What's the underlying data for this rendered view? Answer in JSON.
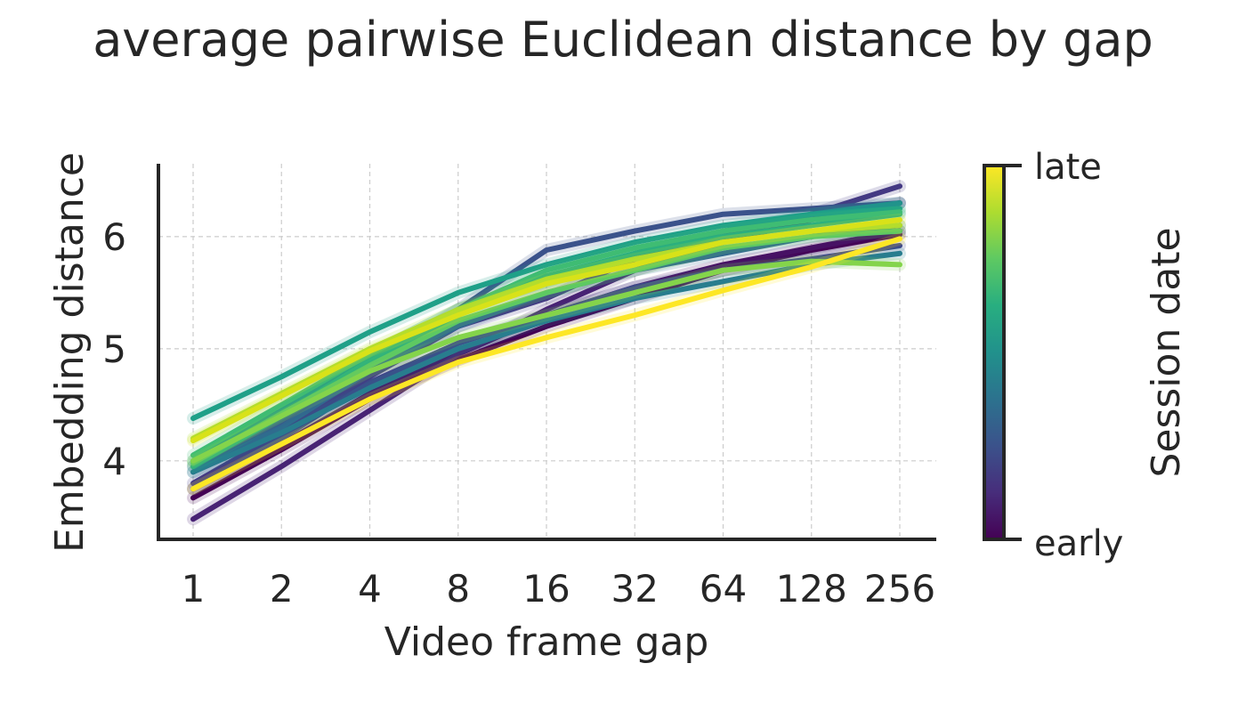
{
  "chart_data": {
    "type": "line",
    "title": "average pairwise Euclidean distance by gap",
    "xlabel": "Video frame gap",
    "ylabel": "Embedding distance",
    "x": [
      1,
      2,
      4,
      8,
      16,
      32,
      64,
      128,
      256
    ],
    "x_scale": "log2",
    "xticks": [
      "1",
      "2",
      "4",
      "8",
      "16",
      "32",
      "64",
      "128",
      "256"
    ],
    "yticks": [
      4,
      5,
      6
    ],
    "ylim": [
      3.3,
      6.65
    ],
    "grid": true,
    "colorbar": {
      "label": "Session date",
      "tick_top": "late",
      "tick_bottom": "early",
      "colormap": "viridis"
    },
    "series": [
      {
        "color": "#440154",
        "values": [
          3.67,
          4.1,
          4.55,
          4.9,
          5.2,
          5.45,
          5.7,
          5.88,
          6.02
        ]
      },
      {
        "color": "#471164",
        "values": [
          3.75,
          4.15,
          4.6,
          4.95,
          5.3,
          5.55,
          5.75,
          5.9,
          6.05
        ]
      },
      {
        "color": "#482374",
        "values": [
          3.48,
          3.95,
          4.45,
          4.95,
          5.35,
          5.7,
          5.95,
          6.15,
          6.3
        ]
      },
      {
        "color": "#443983",
        "values": [
          3.8,
          4.25,
          4.75,
          5.2,
          5.45,
          5.8,
          6.0,
          6.2,
          6.45
        ]
      },
      {
        "color": "#3e4989",
        "values": [
          3.75,
          4.2,
          4.7,
          5.05,
          5.3,
          5.55,
          5.7,
          5.8,
          5.92
        ]
      },
      {
        "color": "#3b528b",
        "values": [
          3.95,
          4.35,
          4.85,
          5.35,
          5.88,
          6.05,
          6.2,
          6.25,
          6.3
        ]
      },
      {
        "color": "#31688e",
        "values": [
          3.9,
          4.3,
          4.8,
          5.2,
          5.5,
          5.7,
          5.85,
          6.0,
          6.1
        ]
      },
      {
        "color": "#287d8e",
        "values": [
          3.9,
          4.25,
          4.65,
          5.0,
          5.25,
          5.45,
          5.6,
          5.75,
          5.85
        ]
      },
      {
        "color": "#21918c",
        "values": [
          4.0,
          4.45,
          4.95,
          5.35,
          5.6,
          5.85,
          6.05,
          6.2,
          6.3
        ]
      },
      {
        "color": "#1fa088",
        "values": [
          4.38,
          4.75,
          5.15,
          5.5,
          5.75,
          5.95,
          6.1,
          6.2,
          6.25
        ]
      },
      {
        "color": "#28ae80",
        "values": [
          3.95,
          4.4,
          4.9,
          5.3,
          5.65,
          5.85,
          6.0,
          6.1,
          6.2
        ]
      },
      {
        "color": "#3fbc73",
        "values": [
          4.05,
          4.5,
          4.95,
          5.35,
          5.7,
          5.9,
          6.05,
          6.15,
          6.22
        ]
      },
      {
        "color": "#5ec962",
        "values": [
          3.98,
          4.42,
          4.85,
          5.25,
          5.5,
          5.7,
          5.9,
          6.0,
          6.05
        ]
      },
      {
        "color": "#84d44b",
        "values": [
          4.0,
          4.4,
          4.8,
          5.1,
          5.3,
          5.5,
          5.7,
          5.78,
          5.75
        ]
      },
      {
        "color": "#addc30",
        "values": [
          4.2,
          4.6,
          5.0,
          5.35,
          5.62,
          5.8,
          5.95,
          6.05,
          6.1
        ]
      },
      {
        "color": "#d8e219",
        "values": [
          4.18,
          4.58,
          4.98,
          5.3,
          5.58,
          5.75,
          5.95,
          6.05,
          6.15
        ]
      },
      {
        "color": "#fde725",
        "values": [
          3.75,
          4.15,
          4.55,
          4.88,
          5.1,
          5.3,
          5.52,
          5.73,
          5.98
        ]
      }
    ]
  }
}
